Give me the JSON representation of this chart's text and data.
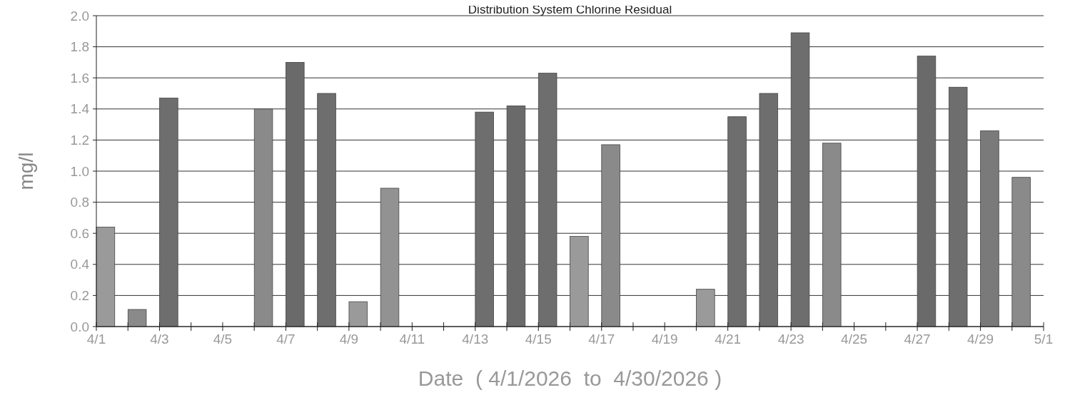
{
  "chart_data": {
    "type": "bar",
    "title": "Distribution System Chlorine Residual",
    "xlabel": "Date  ( 4/1/2026  to  4/30/2026 )",
    "ylabel": "mg/l",
    "x": [
      "2026-04-01T07:00",
      "2026-04-02T07:00",
      "2026-04-03T07:00",
      "2026-04-06T07:00",
      "2026-04-07T07:00",
      "2026-04-08T07:00",
      "2026-04-09T07:00",
      "2026-04-10T07:00",
      "2026-04-13T07:00",
      "2026-04-14T07:00",
      "2026-04-15T07:00",
      "2026-04-16T07:00",
      "2026-04-17T07:00",
      "2026-04-20T07:00",
      "2026-04-21T07:00",
      "2026-04-22T07:00",
      "2026-04-23T07:00",
      "2026-04-24T07:00",
      "2026-04-27T07:00",
      "2026-04-28T07:00",
      "2026-04-29T07:00",
      "2026-04-30T07:00"
    ],
    "values": [
      0.64,
      0.11,
      1.47,
      1.4,
      1.7,
      1.5,
      0.16,
      0.89,
      1.38,
      1.42,
      1.63,
      0.58,
      1.17,
      0.24,
      1.35,
      1.5,
      1.89,
      1.18,
      1.74,
      1.54,
      1.26,
      0.96
    ],
    "colors": [
      "#9a9a9a",
      "#8a8a8a",
      "#6e6e6e",
      "#8a8a8a",
      "#6a6a6a",
      "#6e6e6e",
      "#9a9a9a",
      "#929292",
      "#6e6e6e",
      "#6a6a6a",
      "#6e6e6e",
      "#9a9a9a",
      "#8a8a8a",
      "#9a9a9a",
      "#6e6e6e",
      "#6e6e6e",
      "#6e6e6e",
      "#8a8a8a",
      "#6a6a6a",
      "#6e6e6e",
      "#7a7a7a",
      "#8a8a8a"
    ],
    "xlim": [
      "2026-04-01",
      "2026-05-01"
    ],
    "xticks": [
      {
        "value": "2026-04-01",
        "label": "4/1"
      },
      {
        "value": "2026-04-02",
        "label": null
      },
      {
        "value": "2026-04-03",
        "label": "4/3"
      },
      {
        "value": "2026-04-04",
        "label": null
      },
      {
        "value": "2026-04-05",
        "label": "4/5"
      },
      {
        "value": "2026-04-06",
        "label": null
      },
      {
        "value": "2026-04-07",
        "label": "4/7"
      },
      {
        "value": "2026-04-08",
        "label": null
      },
      {
        "value": "2026-04-09",
        "label": "4/9"
      },
      {
        "value": "2026-04-10",
        "label": null
      },
      {
        "value": "2026-04-11",
        "label": "4/11"
      },
      {
        "value": "2026-04-12",
        "label": null
      },
      {
        "value": "2026-04-13",
        "label": "4/13"
      },
      {
        "value": "2026-04-14",
        "label": null
      },
      {
        "value": "2026-04-15",
        "label": "4/15"
      },
      {
        "value": "2026-04-16",
        "label": null
      },
      {
        "value": "2026-04-17",
        "label": "4/17"
      },
      {
        "value": "2026-04-18",
        "label": null
      },
      {
        "value": "2026-04-19",
        "label": "4/19"
      },
      {
        "value": "2026-04-20",
        "label": null
      },
      {
        "value": "2026-04-21",
        "label": "4/21"
      },
      {
        "value": "2026-04-22",
        "label": null
      },
      {
        "value": "2026-04-23",
        "label": "4/23"
      },
      {
        "value": "2026-04-24",
        "label": null
      },
      {
        "value": "2026-04-25",
        "label": "4/25"
      },
      {
        "value": "2026-04-26",
        "label": null
      },
      {
        "value": "2026-04-27",
        "label": "4/27"
      },
      {
        "value": "2026-04-28",
        "label": null
      },
      {
        "value": "2026-04-29",
        "label": "4/29"
      },
      {
        "value": "2026-04-30",
        "label": null
      },
      {
        "value": "2026-05-01",
        "label": "5/1"
      }
    ],
    "ylim": [
      0,
      2
    ],
    "yticks": [
      {
        "value": 0,
        "label": "0.0"
      },
      {
        "value": 0.2,
        "label": "0.2"
      },
      {
        "value": 0.4,
        "label": "0.4"
      },
      {
        "value": 0.6,
        "label": "0.6"
      },
      {
        "value": 0.8,
        "label": "0.8"
      },
      {
        "value": 1,
        "label": "1.0"
      },
      {
        "value": 1.2,
        "label": "1.2"
      },
      {
        "value": 1.4,
        "label": "1.4"
      },
      {
        "value": 1.6,
        "label": "1.6"
      },
      {
        "value": 1.8,
        "label": "1.8"
      },
      {
        "value": 2,
        "label": "2.0"
      }
    ],
    "grid": "y"
  }
}
